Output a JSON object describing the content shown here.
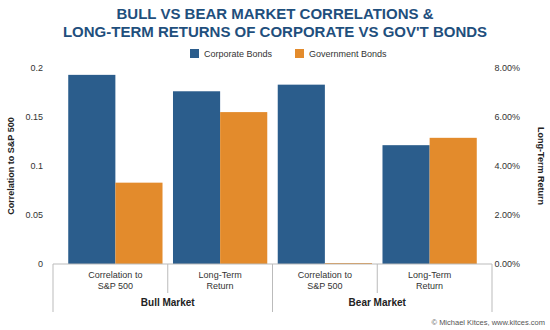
{
  "chart_data": {
    "type": "bar",
    "title": [
      "BULL VS BEAR MARKET CORRELATIONS &",
      "LONG-TERM RETURNS OF CORPORATE VS GOV'T BONDS"
    ],
    "categories": [
      "Correlation to S&P 500",
      "Long-Term Return",
      "Correlation to S&P 500",
      "Long-Term Return"
    ],
    "groups": [
      "Bull Market",
      "Bear Market"
    ],
    "y_label": "Correlation to S&P 500",
    "y2_label": "Long-Term Return",
    "ylim": [
      0,
      0.2
    ],
    "yticks": [
      0,
      0.05,
      0.1,
      0.15,
      0.2
    ],
    "y2lim": [
      0,
      8
    ],
    "y2ticks": [
      {
        "value": 0,
        "label": "0.00%"
      },
      {
        "value": 2,
        "label": "2.00%"
      },
      {
        "value": 4,
        "label": "4.00%"
      },
      {
        "value": 6,
        "label": "6.00%"
      },
      {
        "value": 8,
        "label": "8.00%"
      }
    ],
    "series": [
      {
        "name": "Corporate Bonds",
        "color": "#2b5d8c",
        "values": [
          0.193,
          null,
          0.183,
          null
        ]
      },
      {
        "name": "Government Bonds",
        "color": "#e38b2c",
        "values": [
          0.083,
          null,
          0.001,
          null
        ]
      },
      {
        "name": "Corporate Bonds",
        "color": "#2b5d8c",
        "values": [
          null,
          7.05,
          null,
          4.85
        ],
        "axis": "y2"
      },
      {
        "name": "Government Bonds",
        "color": "#e38b2c",
        "values": [
          null,
          6.2,
          null,
          5.15
        ],
        "axis": "y2"
      }
    ],
    "legend": "top",
    "grid": false,
    "source": "© Michael Kitces, www.kitces.com"
  }
}
